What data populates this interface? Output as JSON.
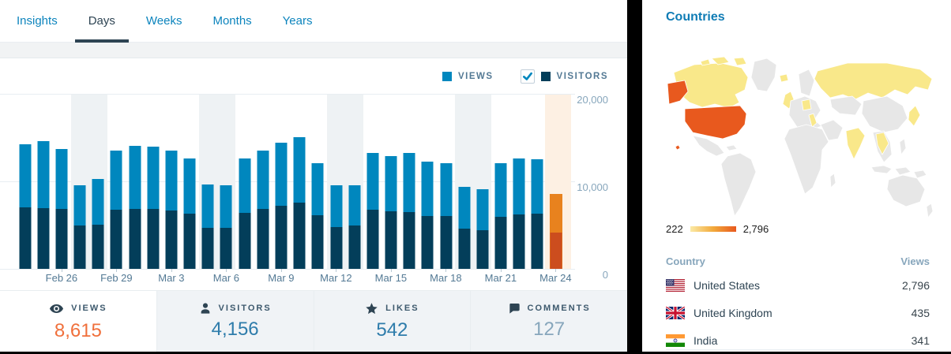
{
  "colors": {
    "accent_blue": "#0087be",
    "views_bar": "#0087be",
    "visitors_bar": "#033e5a",
    "selected_views_bar": "#e8821e",
    "selected_visitors_bar": "#cc4d1e",
    "weekend_band": "#eef2f4",
    "selected_band": "#fdf0e3",
    "views_value": "#f0703c",
    "comments_value": "#87a6bc",
    "map_default": "#e7e7e7",
    "map_low": "#f9e88a",
    "map_high": "#e8591e"
  },
  "period_tabs": {
    "items": [
      {
        "label": "Insights",
        "active": false
      },
      {
        "label": "Days",
        "active": true
      },
      {
        "label": "Weeks",
        "active": false
      },
      {
        "label": "Months",
        "active": false
      },
      {
        "label": "Years",
        "active": false
      }
    ]
  },
  "legend": {
    "views_label": "VIEWS",
    "visitors_label": "VISITORS",
    "visitors_checked": true
  },
  "chart_data": {
    "type": "bar",
    "categories": [
      "Feb 24",
      "Feb 25",
      "Feb 26",
      "Feb 27",
      "Feb 28",
      "Feb 29",
      "Mar 1",
      "Mar 2",
      "Mar 3",
      "Mar 4",
      "Mar 5",
      "Mar 6",
      "Mar 7",
      "Mar 8",
      "Mar 9",
      "Mar 10",
      "Mar 11",
      "Mar 12",
      "Mar 13",
      "Mar 14",
      "Mar 15",
      "Mar 16",
      "Mar 17",
      "Mar 18",
      "Mar 19",
      "Mar 20",
      "Mar 21",
      "Mar 22",
      "Mar 23",
      "Mar 24"
    ],
    "series": [
      {
        "name": "Views",
        "values": [
          14300,
          14700,
          13750,
          9600,
          10300,
          13600,
          14100,
          14050,
          13550,
          12700,
          9700,
          9550,
          12700,
          13600,
          14500,
          15100,
          12100,
          9550,
          9600,
          13300,
          12900,
          13300,
          12300,
          12100,
          9400,
          9150,
          12100,
          12650,
          12600,
          8615
        ]
      },
      {
        "name": "Visitors",
        "values": [
          7050,
          6950,
          6850,
          4950,
          5100,
          6750,
          6850,
          6900,
          6730,
          6370,
          4720,
          4720,
          6460,
          6850,
          7200,
          7600,
          6150,
          4800,
          4950,
          6760,
          6600,
          6550,
          6100,
          6070,
          4650,
          4440,
          6010,
          6220,
          6300,
          4156
        ]
      }
    ],
    "ylim": [
      0,
      20000
    ],
    "y_tick_labels": [
      "20,000",
      "10,000",
      "0"
    ],
    "x_tick_labels": [
      "Feb 26",
      "Feb 29",
      "Mar 3",
      "Mar 6",
      "Mar 9",
      "Mar 12",
      "Mar 15",
      "Mar 18",
      "Mar 21",
      "Mar 24"
    ],
    "x_tick_indices": [
      2,
      5,
      8,
      11,
      14,
      17,
      20,
      23,
      26,
      29
    ],
    "weekend_indices": [
      3,
      4,
      10,
      11,
      17,
      18,
      24,
      25
    ],
    "selected_index": 29,
    "grid": "horizontal",
    "legend_position": "top-right"
  },
  "summary": {
    "items": [
      {
        "label": "VIEWS",
        "value": "8,615",
        "icon": "eye-icon",
        "selected": true,
        "value_class": "orange"
      },
      {
        "label": "VISITORS",
        "value": "4,156",
        "icon": "person-icon",
        "selected": false,
        "value_class": "blue"
      },
      {
        "label": "LIKES",
        "value": "542",
        "icon": "star-icon",
        "selected": false,
        "value_class": "blue"
      },
      {
        "label": "COMMENTS",
        "value": "127",
        "icon": "comment-icon",
        "selected": false,
        "value_class": "gray"
      }
    ]
  },
  "countries": {
    "title": "Countries",
    "map_legend": {
      "min": "222",
      "max": "2,796"
    },
    "table": {
      "country_header": "Country",
      "views_header": "Views",
      "rows": [
        {
          "flag": "us-flag",
          "country": "United States",
          "views": "2,796"
        },
        {
          "flag": "uk-flag",
          "country": "United Kingdom",
          "views": "435"
        },
        {
          "flag": "india-flag",
          "country": "India",
          "views": "341"
        }
      ]
    }
  }
}
